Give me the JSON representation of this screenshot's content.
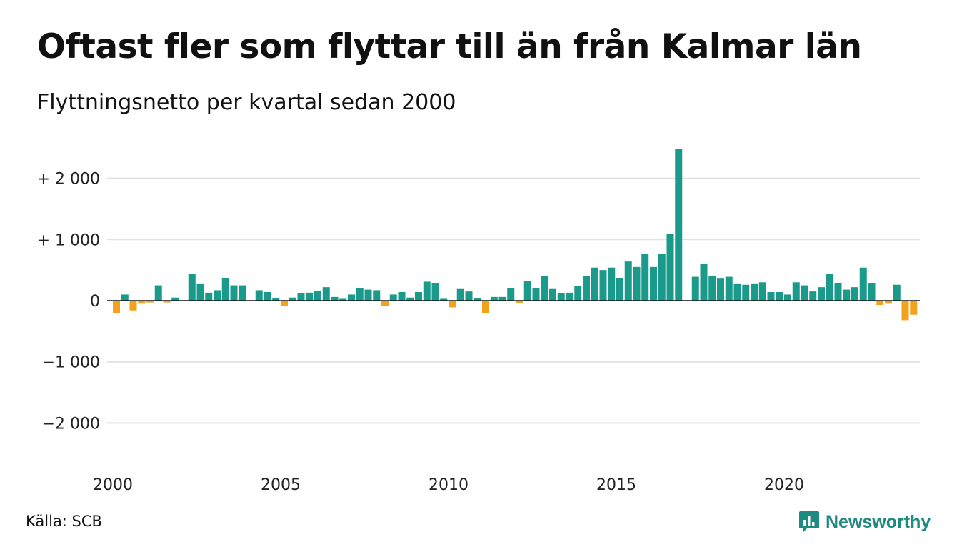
{
  "header": {
    "title": "Oftast fler som flyttar till än från Kalmar län",
    "subtitle": "Flyttningsnetto per kvartal sedan 2000"
  },
  "footer": {
    "source": "Källa: SCB",
    "brand": "Newsworthy",
    "brand_icon": "newsworthy-logo-icon"
  },
  "colors": {
    "positive": "#1a9a8a",
    "negative": "#f2a21b",
    "grid": "#e2e2e2",
    "baseline": "#111111",
    "brand": "#1f8a80"
  },
  "chart_data": {
    "type": "bar",
    "ylim": [
      -2600,
      2550
    ],
    "y_ticks": [
      {
        "value": 2000,
        "label": "+ 2 000"
      },
      {
        "value": 1000,
        "label": "+ 1 000"
      },
      {
        "value": 0,
        "label": "0"
      },
      {
        "value": -1000,
        "label": "−1 000"
      },
      {
        "value": -2000,
        "label": "−2 000"
      }
    ],
    "x_ticks": [
      {
        "value": 2000,
        "label": "2000"
      },
      {
        "value": 2005,
        "label": "2005"
      },
      {
        "value": 2010,
        "label": "2010"
      },
      {
        "value": 2015,
        "label": "2015"
      },
      {
        "value": 2020,
        "label": "2020"
      }
    ],
    "categories": [
      "2000 K1",
      "2000 K2",
      "2000 K3",
      "2000 K4",
      "2001 K1",
      "2001 K2",
      "2001 K3",
      "2001 K4",
      "2002 K1",
      "2002 K2",
      "2002 K3",
      "2002 K4",
      "2003 K1",
      "2003 K2",
      "2003 K3",
      "2003 K4",
      "2004 K1",
      "2004 K2",
      "2004 K3",
      "2004 K4",
      "2005 K1",
      "2005 K2",
      "2005 K3",
      "2005 K4",
      "2006 K1",
      "2006 K2",
      "2006 K3",
      "2006 K4",
      "2007 K1",
      "2007 K2",
      "2007 K3",
      "2007 K4",
      "2008 K1",
      "2008 K2",
      "2008 K3",
      "2008 K4",
      "2009 K1",
      "2009 K2",
      "2009 K3",
      "2009 K4",
      "2010 K1",
      "2010 K2",
      "2010 K3",
      "2010 K4",
      "2011 K1",
      "2011 K2",
      "2011 K3",
      "2011 K4",
      "2012 K1",
      "2012 K2",
      "2012 K3",
      "2012 K4",
      "2013 K1",
      "2013 K2",
      "2013 K3",
      "2013 K4",
      "2014 K1",
      "2014 K2",
      "2014 K3",
      "2014 K4",
      "2015 K1",
      "2015 K2",
      "2015 K3",
      "2015 K4",
      "2016 K1",
      "2016 K2",
      "2016 K3",
      "2016 K4",
      "2017 K1",
      "2017 K2",
      "2017 K3",
      "2017 K4",
      "2018 K1",
      "2018 K2",
      "2018 K3",
      "2018 K4",
      "2019 K1",
      "2019 K2",
      "2019 K3",
      "2019 K4",
      "2020 K1",
      "2020 K2",
      "2020 K3",
      "2020 K4",
      "2021 K1",
      "2021 K2",
      "2021 K3",
      "2021 K4",
      "2022 K1",
      "2022 K2",
      "2022 K3",
      "2022 K4",
      "2023 K1",
      "2023 K2",
      "2023 K3",
      "2023 K4",
      "2024 K1"
    ],
    "values": [
      -200,
      100,
      -160,
      -50,
      -30,
      250,
      -30,
      50,
      -10,
      440,
      270,
      130,
      170,
      370,
      250,
      250,
      -10,
      170,
      140,
      40,
      -90,
      50,
      120,
      130,
      160,
      220,
      60,
      30,
      100,
      210,
      180,
      170,
      -90,
      100,
      140,
      50,
      140,
      310,
      290,
      30,
      -110,
      190,
      150,
      40,
      -200,
      60,
      60,
      200,
      -40,
      320,
      200,
      400,
      190,
      120,
      130,
      240,
      400,
      540,
      500,
      540,
      370,
      640,
      550,
      770,
      550,
      770,
      1090,
      2480,
      0,
      390,
      600,
      400,
      360,
      390,
      270,
      260,
      270,
      300,
      140,
      140,
      100,
      300,
      250,
      150,
      220,
      440,
      290,
      180,
      220,
      540,
      290,
      -70,
      -50,
      260,
      -320,
      -230,
      0
    ]
  }
}
